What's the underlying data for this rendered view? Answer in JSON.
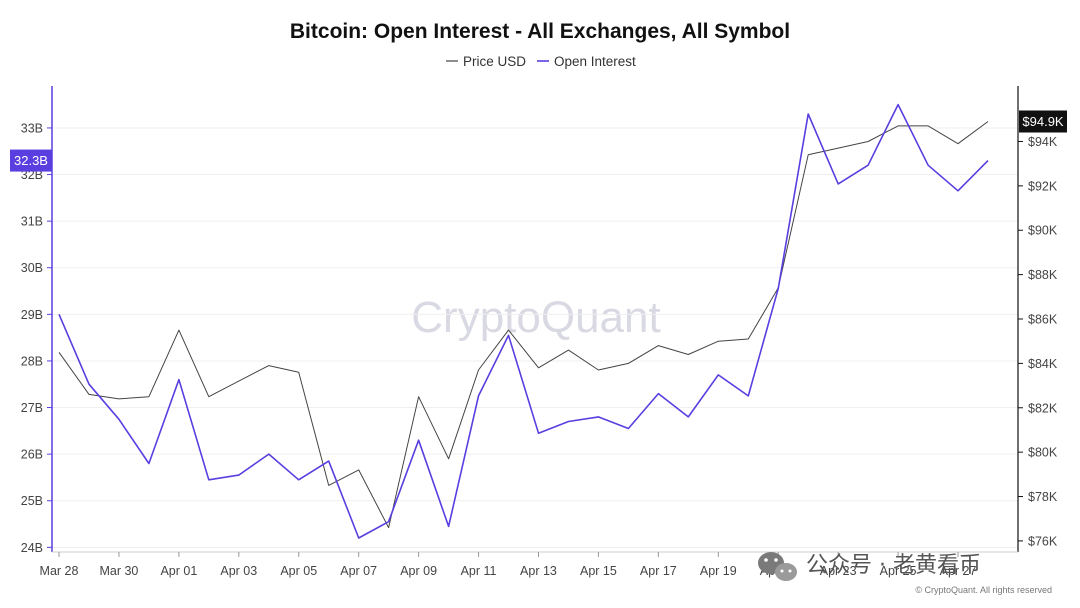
{
  "chart_data": {
    "type": "line",
    "title": "Bitcoin: Open Interest - All Exchanges, All Symbol",
    "legend": {
      "placement": "top-center",
      "entries": [
        {
          "name": "Price USD",
          "color": "#444444"
        },
        {
          "name": "Open Interest",
          "color": "#5a3ee0"
        }
      ]
    },
    "x_tick_labels": [
      "Mar 28",
      "Mar 30",
      "Apr 01",
      "Apr 03",
      "Apr 05",
      "Apr 07",
      "Apr 09",
      "Apr 11",
      "Apr 13",
      "Apr 15",
      "Apr 17",
      "Apr 19",
      "Apr 21",
      "Apr 23",
      "Apr 25",
      "Apr 27"
    ],
    "x": [
      "Mar 28",
      "Mar 29",
      "Mar 30",
      "Mar 31",
      "Apr 01",
      "Apr 02",
      "Apr 03",
      "Apr 04",
      "Apr 05",
      "Apr 06",
      "Apr 07",
      "Apr 08",
      "Apr 09",
      "Apr 10",
      "Apr 11",
      "Apr 12",
      "Apr 13",
      "Apr 14",
      "Apr 15",
      "Apr 16",
      "Apr 17",
      "Apr 18",
      "Apr 19",
      "Apr 20",
      "Apr 21",
      "Apr 22",
      "Apr 23",
      "Apr 24",
      "Apr 25",
      "Apr 26",
      "Apr 27",
      "Apr 28"
    ],
    "left_axis": {
      "unit": "B",
      "ylim": [
        23.9,
        33.9
      ],
      "ticks": [
        24,
        25,
        26,
        27,
        28,
        29,
        30,
        31,
        32,
        33
      ],
      "tick_labels": [
        "24B",
        "25B",
        "26B",
        "27B",
        "28B",
        "29B",
        "30B",
        "31B",
        "32B",
        "33B"
      ],
      "current_value_label": "32.3B",
      "current_value": 32.3,
      "color": "#5a3ee0"
    },
    "right_axis": {
      "unit": "USD",
      "ylim": [
        75500,
        96500
      ],
      "ticks": [
        76000,
        78000,
        80000,
        82000,
        84000,
        86000,
        88000,
        90000,
        92000,
        94000
      ],
      "tick_labels": [
        "$76K",
        "$78K",
        "$80K",
        "$82K",
        "$84K",
        "$86K",
        "$88K",
        "$90K",
        "$92K",
        "$94K"
      ],
      "current_value_label": "$94.9K",
      "current_value": 94900,
      "color": "#111111"
    },
    "grid": {
      "horizontal": true,
      "vertical": false
    },
    "series": [
      {
        "name": "Price USD",
        "axis": "right",
        "color": "#444444",
        "values": [
          84500,
          82600,
          82400,
          82500,
          85500,
          82500,
          83200,
          83900,
          83600,
          78500,
          79200,
          76600,
          82500,
          79700,
          83700,
          85500,
          83800,
          84600,
          83700,
          84000,
          84800,
          84400,
          85000,
          85100,
          87400,
          93400,
          93700,
          94000,
          94700,
          94700,
          93900,
          94900
        ]
      },
      {
        "name": "Open Interest",
        "axis": "left",
        "color": "#5a3ee0",
        "values": [
          29.0,
          27.5,
          26.75,
          25.8,
          27.6,
          25.45,
          25.55,
          26.0,
          25.45,
          25.85,
          24.2,
          24.55,
          26.3,
          24.45,
          27.25,
          28.55,
          26.45,
          26.7,
          26.8,
          26.55,
          27.3,
          26.8,
          27.7,
          27.25,
          29.55,
          33.3,
          31.8,
          32.2,
          33.5,
          32.2,
          31.65,
          32.3
        ]
      }
    ],
    "watermark": "CryptoQuant",
    "copyright": "© CryptoQuant. All rights reserved",
    "overlay_text": "公众号 · 老黄看币"
  }
}
